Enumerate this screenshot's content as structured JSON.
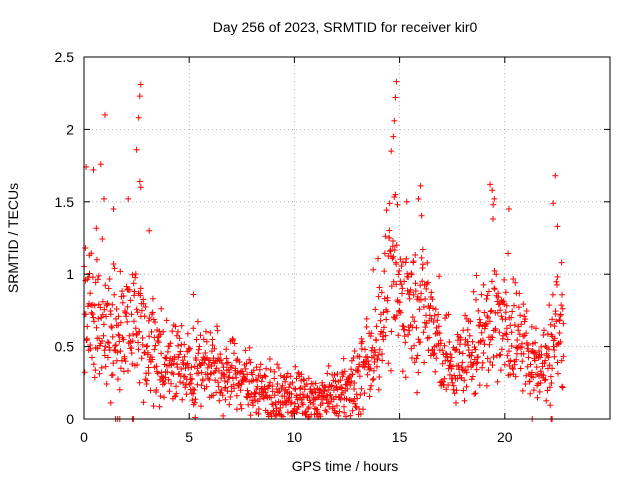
{
  "chart_data": {
    "type": "scatter",
    "title": "Day 256 of 2023, SRMTID for receiver kir0",
    "xlabel": "GPS time / hours",
    "ylabel": "SRMTID / TECUs",
    "xlim": [
      0,
      25
    ],
    "ylim": [
      0,
      2.5
    ],
    "x_ticks": [
      0,
      5,
      10,
      15,
      20
    ],
    "x_tick_labels": [
      "0",
      "5",
      "10",
      "15",
      "20"
    ],
    "y_ticks": [
      0,
      0.5,
      1,
      1.5,
      2,
      2.5
    ],
    "y_tick_labels": [
      "0",
      "0.5",
      "1",
      "1.5",
      "2",
      "2.5"
    ],
    "grid": true,
    "marker": "+",
    "series_color": "#ff0000",
    "series": [
      {
        "name": "SRMTID",
        "profile": [
          [
            0.0,
            0.7
          ],
          [
            0.5,
            0.75
          ],
          [
            1.0,
            0.6
          ],
          [
            1.5,
            0.55
          ],
          [
            2.0,
            0.6
          ],
          [
            2.5,
            0.7
          ],
          [
            3.0,
            0.55
          ],
          [
            3.5,
            0.4
          ],
          [
            4.0,
            0.38
          ],
          [
            5.0,
            0.36
          ],
          [
            6.0,
            0.34
          ],
          [
            7.0,
            0.3
          ],
          [
            8.0,
            0.24
          ],
          [
            9.0,
            0.18
          ],
          [
            10.0,
            0.15
          ],
          [
            11.0,
            0.12
          ],
          [
            12.0,
            0.15
          ],
          [
            13.0,
            0.25
          ],
          [
            13.5,
            0.4
          ],
          [
            14.0,
            0.6
          ],
          [
            14.5,
            0.9
          ],
          [
            15.0,
            0.85
          ],
          [
            15.5,
            0.75
          ],
          [
            16.0,
            0.8
          ],
          [
            16.5,
            0.7
          ],
          [
            17.0,
            0.4
          ],
          [
            17.5,
            0.35
          ],
          [
            18.0,
            0.4
          ],
          [
            18.5,
            0.45
          ],
          [
            19.0,
            0.6
          ],
          [
            19.5,
            0.75
          ],
          [
            20.0,
            0.6
          ],
          [
            20.5,
            0.55
          ],
          [
            21.0,
            0.5
          ],
          [
            21.5,
            0.35
          ],
          [
            22.0,
            0.4
          ],
          [
            22.5,
            0.65
          ],
          [
            22.8,
            0.7
          ]
        ],
        "x_range": [
          0,
          22.8
        ],
        "n_points": 1400,
        "spikes": [
          {
            "x": 0.1,
            "y": 1.74
          },
          {
            "x": 0.45,
            "y": 1.72
          },
          {
            "x": 0.8,
            "y": 1.76
          },
          {
            "x": 0.95,
            "y": 1.52
          },
          {
            "x": 1.0,
            "y": 2.1
          },
          {
            "x": 1.4,
            "y": 1.45
          },
          {
            "x": 2.1,
            "y": 1.52
          },
          {
            "x": 2.5,
            "y": 1.86
          },
          {
            "x": 2.6,
            "y": 2.08
          },
          {
            "x": 2.65,
            "y": 2.23
          },
          {
            "x": 2.7,
            "y": 2.31
          },
          {
            "x": 2.65,
            "y": 1.64
          },
          {
            "x": 2.7,
            "y": 1.6
          },
          {
            "x": 3.1,
            "y": 1.3
          },
          {
            "x": 5.2,
            "y": 0.86
          },
          {
            "x": 14.6,
            "y": 1.85
          },
          {
            "x": 14.7,
            "y": 1.95
          },
          {
            "x": 14.75,
            "y": 2.06
          },
          {
            "x": 14.8,
            "y": 2.22
          },
          {
            "x": 14.85,
            "y": 2.33
          },
          {
            "x": 14.8,
            "y": 1.55
          },
          {
            "x": 14.9,
            "y": 1.48
          },
          {
            "x": 16.0,
            "y": 1.61
          },
          {
            "x": 15.9,
            "y": 1.52
          },
          {
            "x": 19.3,
            "y": 1.62
          },
          {
            "x": 19.4,
            "y": 1.58
          },
          {
            "x": 19.5,
            "y": 1.52
          },
          {
            "x": 19.45,
            "y": 1.48
          },
          {
            "x": 20.2,
            "y": 1.45
          },
          {
            "x": 22.4,
            "y": 1.68
          },
          {
            "x": 22.3,
            "y": 1.49
          },
          {
            "x": 22.5,
            "y": 1.33
          },
          {
            "x": 22.7,
            "y": 1.08
          }
        ],
        "zeros": [
          {
            "x": 1.5,
            "y": 0
          },
          {
            "x": 1.6,
            "y": 0
          },
          {
            "x": 1.7,
            "y": 0
          },
          {
            "x": 2.3,
            "y": 0
          },
          {
            "x": 2.35,
            "y": 0
          },
          {
            "x": 21.3,
            "y": 0
          },
          {
            "x": 22.2,
            "y": 0
          },
          {
            "x": 22.25,
            "y": 0
          }
        ]
      }
    ]
  }
}
